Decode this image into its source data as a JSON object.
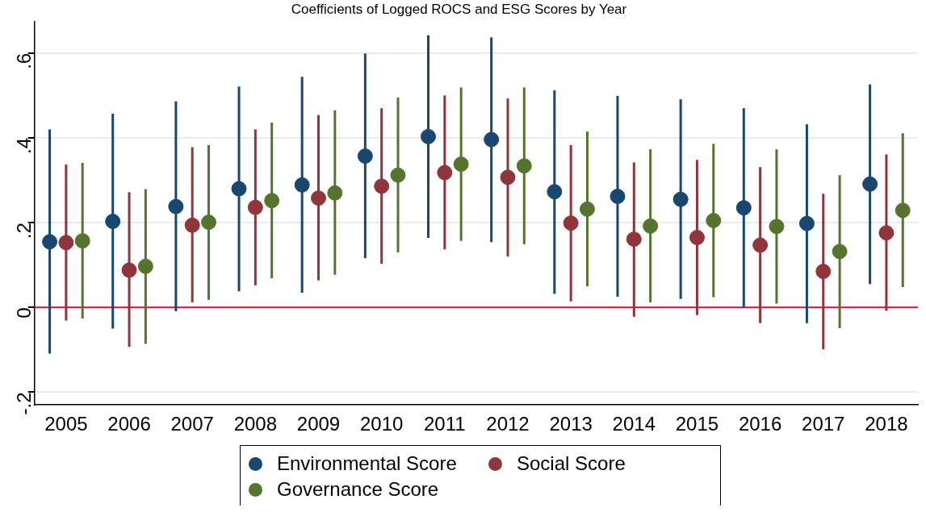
{
  "chart_data": {
    "type": "scatter",
    "title": "Coefficients of Logged ROCS and ESG Scores by Year",
    "categories": [
      "2005",
      "2006",
      "2007",
      "2008",
      "2009",
      "2010",
      "2011",
      "2012",
      "2013",
      "2014",
      "2015",
      "2016",
      "2017",
      "2018"
    ],
    "series": [
      {
        "name": "Environmental Score",
        "color": "#1a476f",
        "values": [
          0.155,
          0.203,
          0.238,
          0.28,
          0.289,
          0.357,
          0.403,
          0.396,
          0.273,
          0.262,
          0.255,
          0.235,
          0.198,
          0.291
        ],
        "errors": [
          [
            -0.109,
            0.42
          ],
          [
            -0.05,
            0.457
          ],
          [
            -0.009,
            0.486
          ],
          [
            0.038,
            0.521
          ],
          [
            0.035,
            0.544
          ],
          [
            0.116,
            0.599
          ],
          [
            0.164,
            0.642
          ],
          [
            0.154,
            0.637
          ],
          [
            0.032,
            0.512
          ],
          [
            0.025,
            0.499
          ],
          [
            0.02,
            0.491
          ],
          [
            -0.001,
            0.47
          ],
          [
            -0.037,
            0.432
          ],
          [
            0.055,
            0.526
          ]
        ]
      },
      {
        "name": "Social Score",
        "color": "#90353b",
        "values": [
          0.153,
          0.088,
          0.194,
          0.236,
          0.258,
          0.286,
          0.318,
          0.307,
          0.199,
          0.161,
          0.165,
          0.147,
          0.085,
          0.176
        ],
        "errors": [
          [
            -0.031,
            0.337
          ],
          [
            -0.093,
            0.272
          ],
          [
            0.012,
            0.378
          ],
          [
            0.052,
            0.42
          ],
          [
            0.064,
            0.454
          ],
          [
            0.103,
            0.47
          ],
          [
            0.137,
            0.5
          ],
          [
            0.12,
            0.493
          ],
          [
            0.014,
            0.383
          ],
          [
            -0.022,
            0.342
          ],
          [
            -0.018,
            0.348
          ],
          [
            -0.037,
            0.331
          ],
          [
            -0.099,
            0.268
          ],
          [
            -0.008,
            0.361
          ]
        ]
      },
      {
        "name": "Governance Score",
        "color": "#55752f",
        "values": [
          0.157,
          0.097,
          0.201,
          0.252,
          0.27,
          0.312,
          0.338,
          0.334,
          0.232,
          0.192,
          0.205,
          0.191,
          0.132,
          0.229
        ],
        "errors": [
          [
            -0.026,
            0.341
          ],
          [
            -0.086,
            0.279
          ],
          [
            0.018,
            0.383
          ],
          [
            0.069,
            0.436
          ],
          [
            0.077,
            0.465
          ],
          [
            0.13,
            0.495
          ],
          [
            0.157,
            0.519
          ],
          [
            0.149,
            0.519
          ],
          [
            0.05,
            0.415
          ],
          [
            0.012,
            0.373
          ],
          [
            0.024,
            0.386
          ],
          [
            0.009,
            0.373
          ],
          [
            -0.049,
            0.312
          ],
          [
            0.048,
            0.411
          ]
        ]
      }
    ],
    "ylim": [
      -0.23,
      0.675
    ],
    "yticks": [
      {
        "value": -0.2,
        "label": "-.2"
      },
      {
        "value": 0,
        "label": "0"
      },
      {
        "value": 0.2,
        "label": ".2"
      },
      {
        "value": 0.4,
        "label": ".4"
      },
      {
        "value": 0.6,
        "label": ".6"
      }
    ],
    "ref_lines": [
      {
        "axis": "y",
        "value": 0,
        "label": null,
        "color": "#d0103a"
      }
    ],
    "grid": "y",
    "legend": "bottom",
    "marker": "circle"
  }
}
